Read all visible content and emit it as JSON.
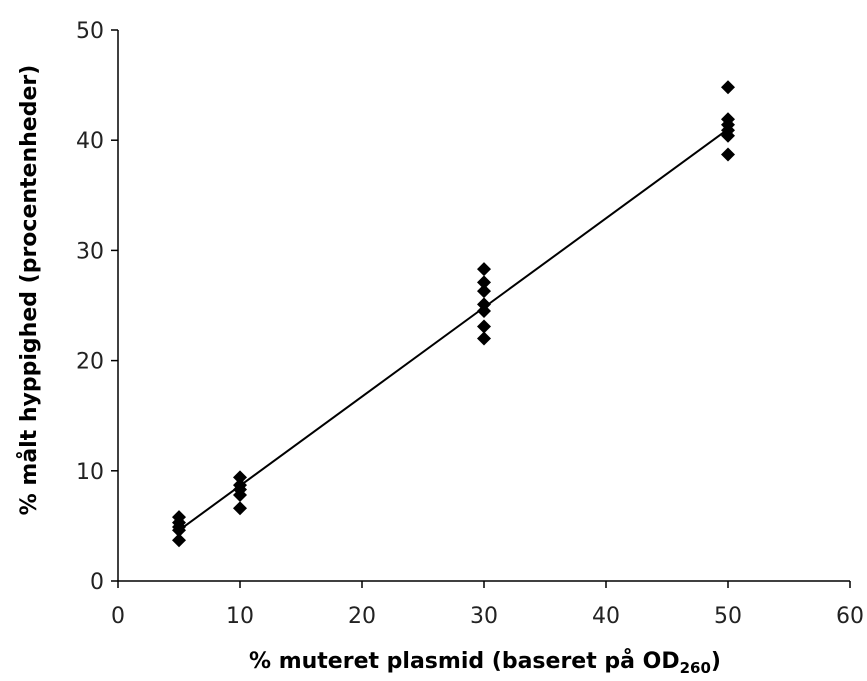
{
  "chart_data": {
    "type": "scatter",
    "title": "",
    "xlabel": "% muteret plasmid (baseret på OD",
    "xlabel_subscript": "260",
    "xlabel_suffix": ")",
    "ylabel": "% målt hyppighed (procentenheder)",
    "xlim": [
      0,
      60
    ],
    "ylim": [
      0,
      50
    ],
    "xticks": [
      "0",
      "10",
      "20",
      "30",
      "40",
      "50",
      "60"
    ],
    "yticks": [
      "0",
      "10",
      "20",
      "30",
      "40",
      "50"
    ],
    "grid": false,
    "legend": "none",
    "marker": "diamond",
    "colors": {
      "marker": "#000000",
      "line": "#000000",
      "axis": "#000000"
    },
    "series": [
      {
        "points": [
          {
            "x": 5,
            "y": 5.8
          },
          {
            "x": 5,
            "y": 5.3
          },
          {
            "x": 5,
            "y": 4.9
          },
          {
            "x": 5,
            "y": 4.6
          },
          {
            "x": 5,
            "y": 3.7
          },
          {
            "x": 10,
            "y": 9.4
          },
          {
            "x": 10,
            "y": 8.7
          },
          {
            "x": 10,
            "y": 8.3
          },
          {
            "x": 10,
            "y": 7.8
          },
          {
            "x": 10,
            "y": 6.6
          },
          {
            "x": 30,
            "y": 28.3
          },
          {
            "x": 30,
            "y": 27.1
          },
          {
            "x": 30,
            "y": 26.3
          },
          {
            "x": 30,
            "y": 25.1
          },
          {
            "x": 30,
            "y": 24.5
          },
          {
            "x": 30,
            "y": 23.1
          },
          {
            "x": 30,
            "y": 22.0
          },
          {
            "x": 50,
            "y": 44.8
          },
          {
            "x": 50,
            "y": 41.9
          },
          {
            "x": 50,
            "y": 41.4
          },
          {
            "x": 50,
            "y": 40.9
          },
          {
            "x": 50,
            "y": 40.4
          },
          {
            "x": 50,
            "y": 38.7
          }
        ]
      }
    ],
    "trendline": {
      "x": [
        5,
        50
      ],
      "y": [
        4.6,
        41.0
      ]
    }
  }
}
